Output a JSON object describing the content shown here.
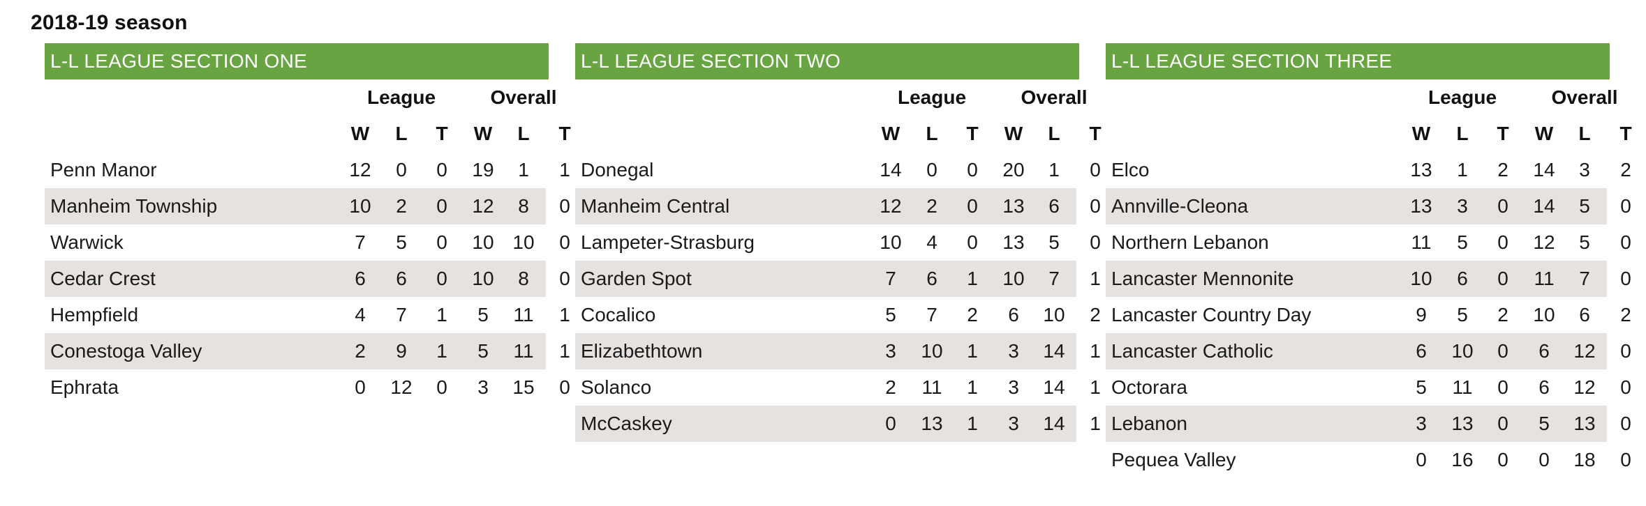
{
  "season_title": "2018-19 season",
  "group_labels": [
    "League",
    "Overall"
  ],
  "column_labels": [
    "W",
    "L",
    "T",
    "W",
    "L",
    "T"
  ],
  "sections": [
    {
      "title": "L-L LEAGUE SECTION ONE",
      "teams": [
        {
          "name": "Penn Manor",
          "stats": [
            "12",
            "0",
            "0",
            "19",
            "1",
            "1"
          ]
        },
        {
          "name": "Manheim Township",
          "stats": [
            "10",
            "2",
            "0",
            "12",
            "8",
            "0"
          ]
        },
        {
          "name": "Warwick",
          "stats": [
            "7",
            "5",
            "0",
            "10",
            "10",
            "0"
          ]
        },
        {
          "name": "Cedar Crest",
          "stats": [
            "6",
            "6",
            "0",
            "10",
            "8",
            "0"
          ]
        },
        {
          "name": "Hempfield",
          "stats": [
            "4",
            "7",
            "1",
            "5",
            "11",
            "1"
          ]
        },
        {
          "name": "Conestoga Valley",
          "stats": [
            "2",
            "9",
            "1",
            "5",
            "11",
            "1"
          ]
        },
        {
          "name": "Ephrata",
          "stats": [
            "0",
            "12",
            "0",
            "3",
            "15",
            "0"
          ]
        }
      ]
    },
    {
      "title": "L-L LEAGUE SECTION TWO",
      "teams": [
        {
          "name": "Donegal",
          "stats": [
            "14",
            "0",
            "0",
            "20",
            "1",
            "0"
          ]
        },
        {
          "name": "Manheim Central",
          "stats": [
            "12",
            "2",
            "0",
            "13",
            "6",
            "0"
          ]
        },
        {
          "name": "Lampeter-Strasburg",
          "stats": [
            "10",
            "4",
            "0",
            "13",
            "5",
            "0"
          ]
        },
        {
          "name": "Garden Spot",
          "stats": [
            "7",
            "6",
            "1",
            "10",
            "7",
            "1"
          ]
        },
        {
          "name": "Cocalico",
          "stats": [
            "5",
            "7",
            "2",
            "6",
            "10",
            "2"
          ]
        },
        {
          "name": "Elizabethtown",
          "stats": [
            "3",
            "10",
            "1",
            "3",
            "14",
            "1"
          ]
        },
        {
          "name": "Solanco",
          "stats": [
            "2",
            "11",
            "1",
            "3",
            "14",
            "1"
          ]
        },
        {
          "name": "McCaskey",
          "stats": [
            "0",
            "13",
            "1",
            "3",
            "14",
            "1"
          ]
        }
      ]
    },
    {
      "title": "L-L LEAGUE SECTION THREE",
      "teams": [
        {
          "name": "Elco",
          "stats": [
            "13",
            "1",
            "2",
            "14",
            "3",
            "2"
          ]
        },
        {
          "name": "Annville-Cleona",
          "stats": [
            "13",
            "3",
            "0",
            "14",
            "5",
            "0"
          ]
        },
        {
          "name": "Northern Lebanon",
          "stats": [
            "11",
            "5",
            "0",
            "12",
            "5",
            "0"
          ]
        },
        {
          "name": "Lancaster Mennonite",
          "stats": [
            "10",
            "6",
            "0",
            "11",
            "7",
            "0"
          ]
        },
        {
          "name": "Lancaster Country Day",
          "stats": [
            "9",
            "5",
            "2",
            "10",
            "6",
            "2"
          ]
        },
        {
          "name": "Lancaster Catholic",
          "stats": [
            "6",
            "10",
            "0",
            "6",
            "12",
            "0"
          ]
        },
        {
          "name": "Octorara",
          "stats": [
            "5",
            "11",
            "0",
            "6",
            "12",
            "0"
          ]
        },
        {
          "name": "Lebanon",
          "stats": [
            "3",
            "13",
            "0",
            "5",
            "13",
            "0"
          ]
        },
        {
          "name": "Pequea Valley",
          "stats": [
            "0",
            "16",
            "0",
            "0",
            "18",
            "0"
          ]
        }
      ]
    }
  ],
  "colors": {
    "header_green": "#69a442",
    "row_shade": "#e6e2df"
  }
}
